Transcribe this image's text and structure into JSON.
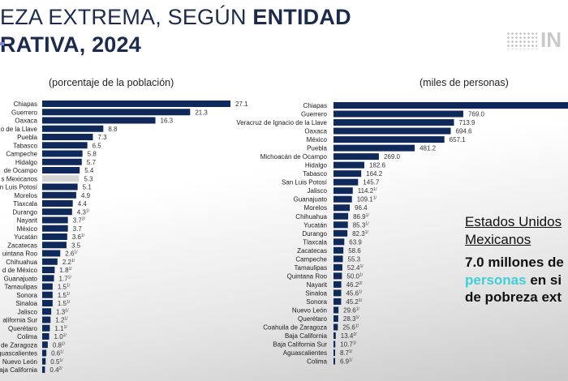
{
  "header": {
    "title_line1_regular": "EZA EXTREMA, SEGÚN ",
    "title_line1_bold": "ENTIDAD",
    "title_line2": "RATIVA, 2024",
    "logo_text": "IN"
  },
  "colors": {
    "bar": "#0f2a5a",
    "national_bar": "#d4d4d4",
    "highlight": "#3fcfd6",
    "title": "#1b2b4d"
  },
  "chart_data": [
    {
      "type": "bar",
      "orientation": "horizontal",
      "subtitle": "(porcentaje de la población)",
      "categories": [
        "Chiapas",
        "Guerrero",
        "Oaxaca",
        "o de la Llave",
        "Puebla",
        "Tabasco",
        "Campeche",
        "Hidalgo",
        "de Ocampo",
        "s Mexicanos",
        "n Luis Potosí",
        "Morelos",
        "Tlaxcala",
        "Durango",
        "Nayarit",
        "México",
        "Yucatán",
        "Zacatecas",
        "uintana Roo",
        "Chihuahua",
        "d de México",
        "Guanajuato",
        "Tamaulipas",
        "Sonora",
        "Sinaloa",
        "Jalisco",
        "alifornia Sur",
        "Querétaro",
        "Colima",
        "de Zaragoza",
        "guascalientes",
        "Nuevo León",
        "aja California"
      ],
      "values": [
        27.1,
        21.3,
        16.3,
        8.8,
        7.3,
        6.5,
        5.8,
        5.7,
        5.4,
        5.3,
        5.1,
        4.9,
        4.4,
        4.3,
        3.7,
        3.7,
        3.6,
        3.5,
        2.6,
        2.2,
        1.8,
        1.7,
        1.5,
        1.5,
        1.5,
        1.3,
        1.2,
        1.1,
        1.0,
        0.8,
        0.6,
        0.5,
        0.4
      ],
      "notes": [
        "",
        "",
        "",
        "",
        "",
        "",
        "",
        "",
        "",
        "",
        "",
        "",
        "",
        "1/",
        "2/",
        "",
        "1/",
        "",
        "1/",
        "1/",
        "1/",
        "1/",
        "1/",
        "1/",
        "1/",
        "1/",
        "1/",
        "1/",
        "1/",
        "1/",
        "1/",
        "1/",
        "2/"
      ],
      "highlight_category": "s Mexicanos"
    },
    {
      "type": "bar",
      "orientation": "horizontal",
      "subtitle": "(miles de personas)",
      "categories": [
        "Chiapas",
        "Guerrero",
        "Veracruz de Ignacio de la Llave",
        "Oaxaca",
        "México",
        "Puebla",
        "Michoacán de Ocampo",
        "Hidalgo",
        "Tabasco",
        "San Luis Potosí",
        "Jalisco",
        "Guanajuato",
        "Morelos",
        "Chihuahua",
        "Yucatán",
        "Durango",
        "Tlaxcala",
        "Zacatecas",
        "Campeche",
        "Tamaulipas",
        "Quintana Roo",
        "Nayarit",
        "Sinaloa",
        "Sonora",
        "Nuevo León",
        "Querétaro",
        "Coahuila de Zaragoza",
        "Baja California",
        "Baja California Sur",
        "Aguascalientes",
        "Colima"
      ],
      "values": [
        null,
        769.0,
        713.9,
        694.6,
        657.1,
        481.2,
        269.0,
        182.6,
        164.2,
        145.7,
        114.2,
        109.1,
        96.4,
        86.9,
        85.3,
        82.3,
        63.9,
        58.6,
        55.3,
        52.4,
        50.0,
        46.2,
        45.6,
        45.2,
        29.6,
        28.3,
        25.6,
        13.4,
        10.7,
        8.7,
        6.9
      ],
      "notes": [
        "",
        "",
        "",
        "",
        "",
        "",
        "",
        "",
        "",
        "",
        "1/",
        "1/",
        "",
        "1/",
        "1/",
        "1/",
        "",
        "",
        "",
        "1/",
        "1/",
        "2/",
        "1/",
        "1/",
        "1/",
        "1/",
        "1/",
        "2/",
        "1/",
        "1/",
        "1/"
      ]
    }
  ],
  "callout": {
    "heading_line1": "Estados Unidos",
    "heading_line2": "Mexicanos",
    "highlight_line1": "7.0 millones de",
    "highlight_line2": "personas",
    "rest_line2": " en si",
    "line3": "de pobreza ext"
  }
}
